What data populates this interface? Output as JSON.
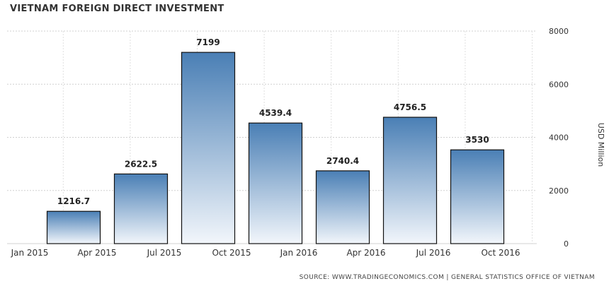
{
  "chart_data": {
    "type": "bar",
    "title": "VIETNAM FOREIGN DIRECT INVESTMENT",
    "ylabel": "USD Million",
    "ylim": [
      0,
      8000
    ],
    "yticks": [
      0,
      2000,
      4000,
      6000,
      8000
    ],
    "x_tick_labels": [
      "Jan 2015",
      "Apr 2015",
      "Jul 2015",
      "Oct 2015",
      "Jan 2016",
      "Apr 2016",
      "Jul 2016",
      "Oct 2016"
    ],
    "categories": [
      "Mar 2015",
      "Jun 2015",
      "Sep 2015",
      "Dec 2015",
      "Mar 2016",
      "Jun 2016",
      "Sep 2016"
    ],
    "values": [
      1216.7,
      2622.5,
      7199,
      4539.4,
      2740.4,
      4756.5,
      3530
    ],
    "data_labels": [
      "1216.7",
      "2622.5",
      "7199",
      "4539.4",
      "2740.4",
      "4756.5",
      "3530"
    ],
    "grid": true,
    "y_axis_position": "right",
    "bar_color": "#4a7fb5"
  },
  "source": "SOURCE: WWW.TRADINGECONOMICS.COM | GENERAL STATISTICS OFFICE OF VIETNAM"
}
